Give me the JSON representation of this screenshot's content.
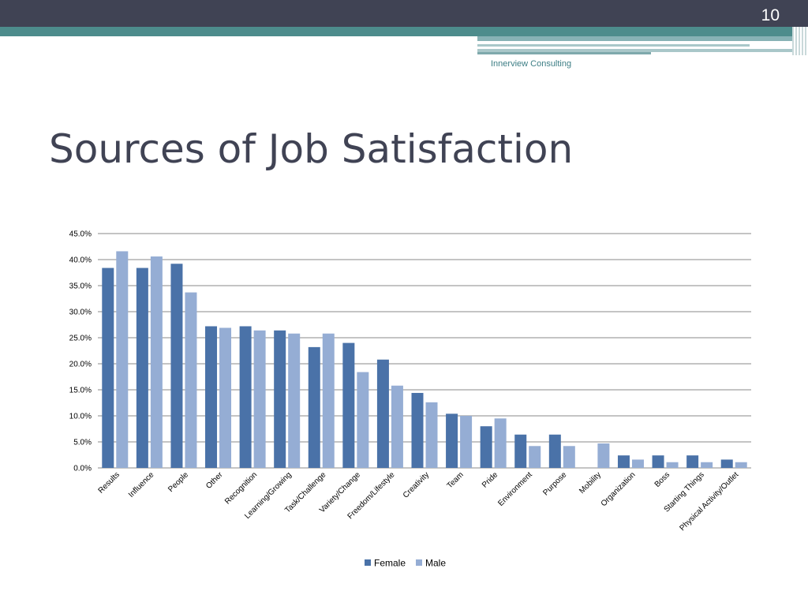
{
  "slide": {
    "number": "10",
    "company": "Innerview Consulting",
    "title": "Sources of Job Satisfaction"
  },
  "colors": {
    "female": "#4a72a8",
    "male": "#95add4",
    "header": "#404354",
    "accent": "#4d8c8c"
  },
  "chart_data": {
    "type": "bar",
    "title": "",
    "xlabel": "",
    "ylabel": "",
    "ylim": [
      0,
      45
    ],
    "yticks": [
      "0.0%",
      "5.0%",
      "10.0%",
      "15.0%",
      "20.0%",
      "25.0%",
      "30.0%",
      "35.0%",
      "40.0%",
      "45.0%"
    ],
    "grid": true,
    "legend_position": "bottom",
    "categories": [
      "Results",
      "Influence",
      "People",
      "Other",
      "Recognition",
      "Learning/Growing",
      "Task/Challenge",
      "Variety/Change",
      "Freedom/Lifestyle",
      "Creativity",
      "Team",
      "Pride",
      "Environment",
      "Purpose",
      "Mobility",
      "Organization",
      "Boss",
      "Starting Things",
      "Physical Activity/Outlet"
    ],
    "series": [
      {
        "name": "Female",
        "values": [
          38.4,
          38.4,
          39.2,
          27.2,
          27.2,
          26.4,
          23.2,
          24.0,
          20.8,
          14.4,
          10.4,
          8.0,
          6.4,
          6.4,
          0,
          2.4,
          2.4,
          2.4,
          1.6
        ]
      },
      {
        "name": "Male",
        "values": [
          41.6,
          40.6,
          33.7,
          26.9,
          26.4,
          25.8,
          25.8,
          18.4,
          15.8,
          12.6,
          10.0,
          9.5,
          4.2,
          4.2,
          4.7,
          1.6,
          1.1,
          1.1,
          1.1
        ]
      }
    ]
  }
}
